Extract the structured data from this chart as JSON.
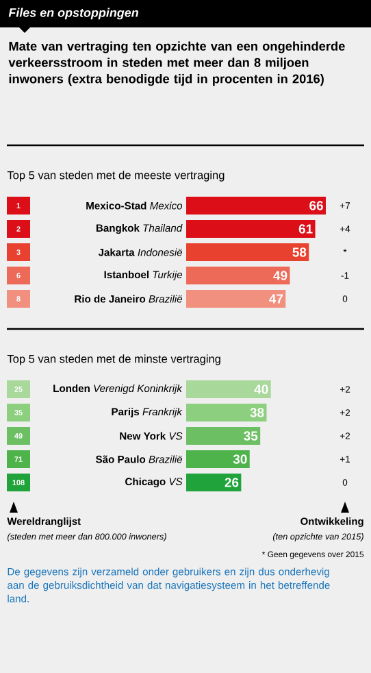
{
  "chart_data": [
    {
      "type": "other",
      "title": "Files en opstoppingen",
      "subtitle": "Mate van vertraging ten opzichte van een ongehinderde verkeersstroom in steden met meer dan 8 miljoen inwoners (extra benodigde tijd in procenten in 2016)"
    },
    {
      "type": "bar",
      "orientation": "horizontal",
      "title": "Top 5 van steden met de meeste vertraging",
      "categories": [
        "**Mexico-Stad** *Mexico*",
        "**Bangkok** *Thailand*",
        "**Jakarta** *Indonesië*",
        "**Istanboel** *Turkije*",
        "**Rio de Janeiro** *Brazilië*"
      ],
      "values": [
        66,
        61,
        58,
        49,
        47
      ],
      "colors": [
        "#dc0f19",
        "#dc0f19",
        "#e8412f",
        "#ee6a58",
        "#f29080"
      ],
      "data_labels": true,
      "annotations": [
        "1",
        "2",
        "3",
        "6",
        "8",
        "+7",
        "+4",
        "*",
        "-1",
        "0"
      ]
    },
    {
      "type": "bar",
      "orientation": "horizontal",
      "title": "Top 5 van steden met de minste vertraging",
      "categories": [
        "**Londen** *Verenigd Koninkrijk*",
        "**Parijs** *Frankrijk*",
        "**New York** *VS*",
        "**São Paulo** *Brazilië*",
        "**Chicago** *VS*"
      ],
      "values": [
        40,
        38,
        35,
        30,
        26
      ],
      "colors": [
        "#a8d89a",
        "#8ccf7e",
        "#6cc063",
        "#4db34a",
        "#1fa33a"
      ],
      "data_labels": true,
      "annotations": [
        "25",
        "35",
        "49",
        "71",
        "108",
        "+2",
        "+2",
        "+2",
        "+1",
        "0"
      ]
    },
    {
      "type": "other",
      "annotations": [
        "Wereldranglijst",
        "(steden met meer dan 800.000 inwoners)",
        "Ontwikkeling",
        "(ten opzichte van 2015)",
        "* Geen gegevens over 2015",
        "De gegevens zijn verzameld onder gebruikers en zijn dus onderhevig aan de gebruiksdichtheid van dat navigatiesysteem in het betreffende land."
      ]
    }
  ]
}
